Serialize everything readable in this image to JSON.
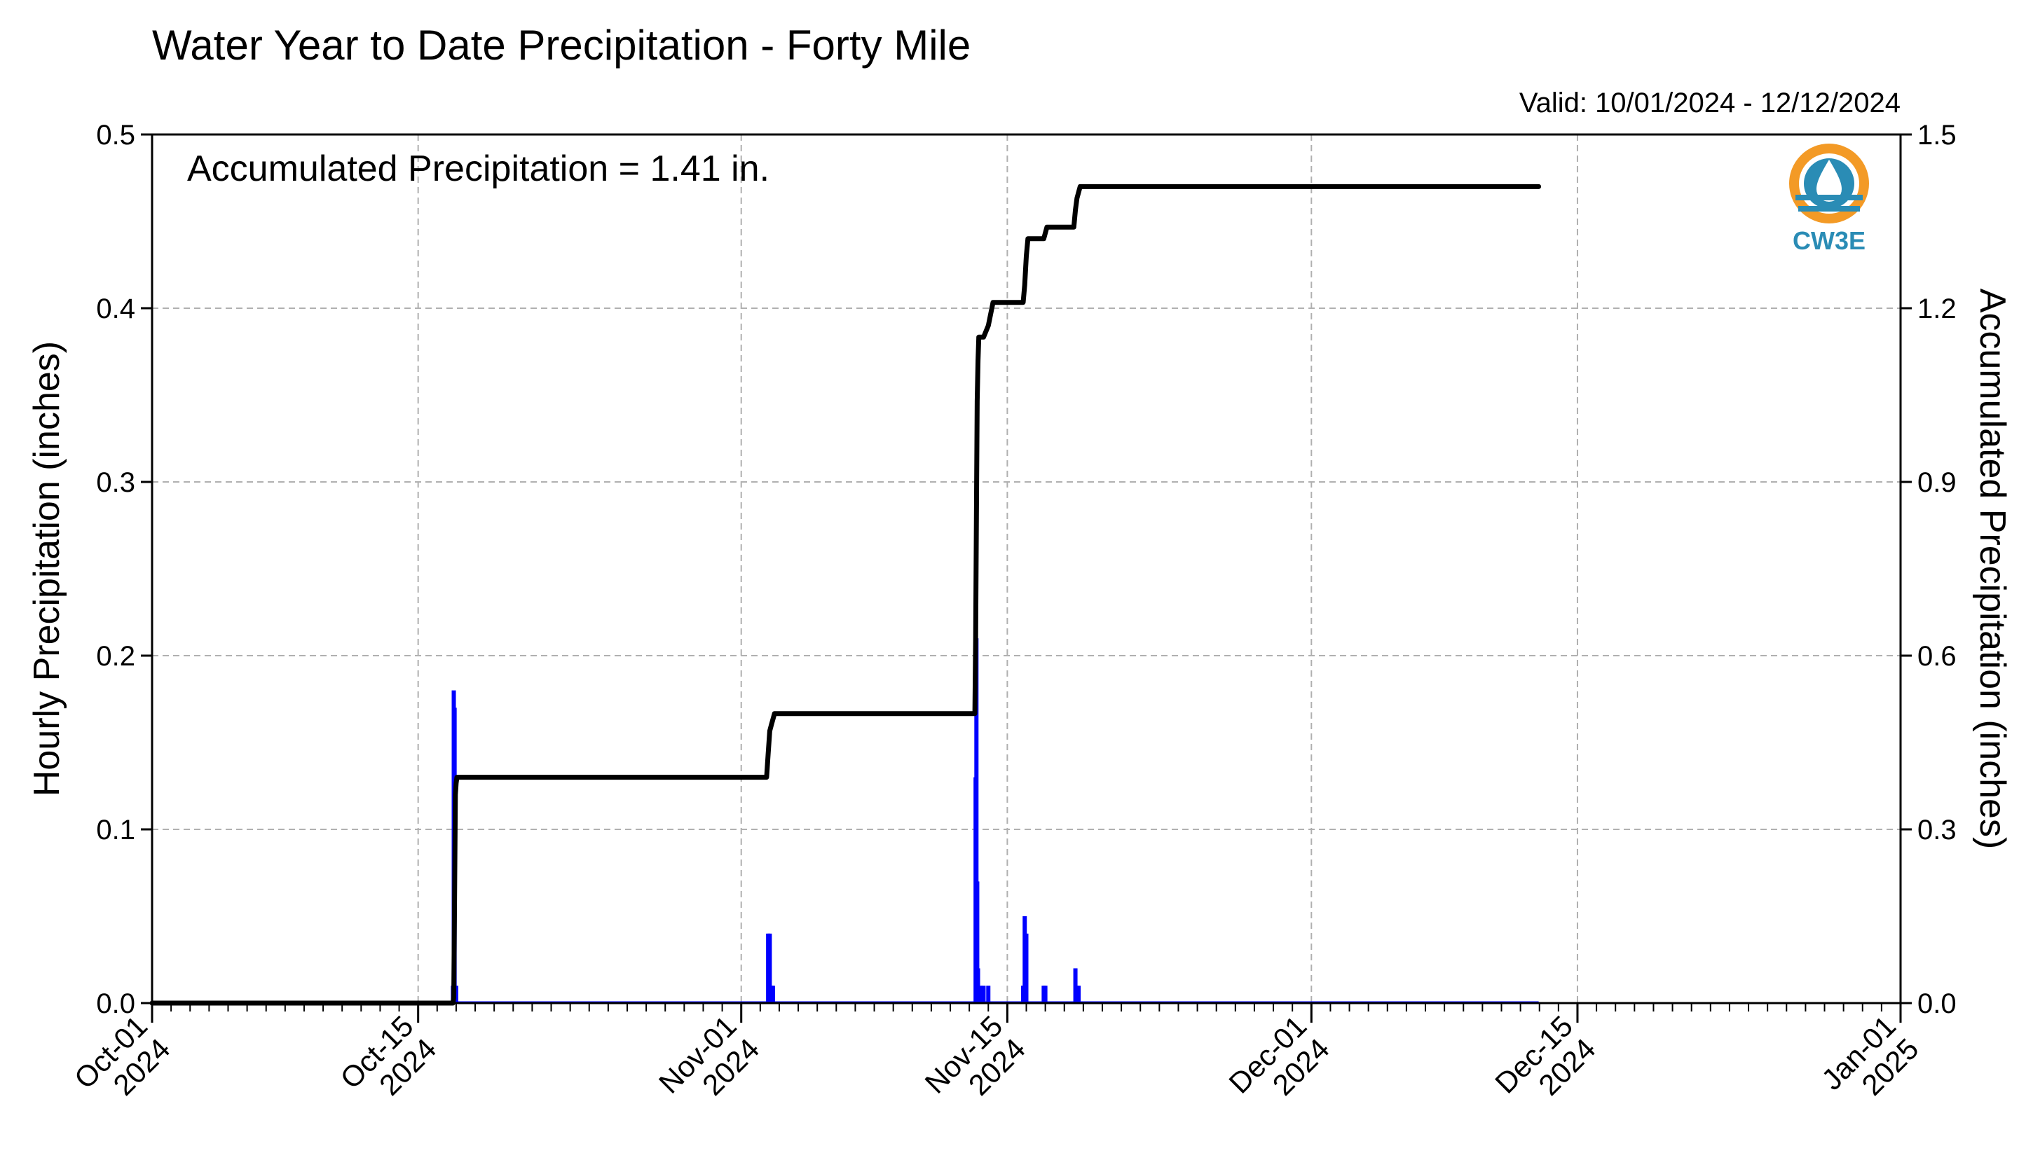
{
  "colors": {
    "hourly": "#0000ff",
    "accumulated": "#000000",
    "grid": "#b0b0b0",
    "logo_orange": "#f39a26",
    "logo_blue": "#2a8cb5"
  },
  "logo": {
    "text": "CW3E",
    "icon": "cw3e-water-drop-logo"
  },
  "chart_data": {
    "type": "bar",
    "title": "Water Year to Date Precipitation - Forty Mile",
    "valid_text": "Valid: 10/01/2024 - 12/12/2024",
    "annotation": "Accumulated Precipitation = 1.41 in.",
    "ylabel": "Hourly Precipitation (inches)",
    "y2label": "Accumulated Precipitation (inches)",
    "ylim": [
      0,
      0.5
    ],
    "y2lim": [
      0,
      1.5
    ],
    "y_ticks": [
      0.0,
      0.1,
      0.2,
      0.3,
      0.4,
      0.5
    ],
    "y_tick_labels": [
      "0.0",
      "0.1",
      "0.2",
      "0.3",
      "0.4",
      "0.5"
    ],
    "y2_ticks": [
      0.0,
      0.3,
      0.6,
      0.9,
      1.2,
      1.5
    ],
    "y2_tick_labels": [
      "0.0",
      "0.3",
      "0.6",
      "0.9",
      "1.2",
      "1.5"
    ],
    "xlim": [
      "2024-10-01",
      "2025-01-01"
    ],
    "x_ticks": [
      "2024-10-01",
      "2024-10-15",
      "2024-11-01",
      "2024-11-15",
      "2024-12-01",
      "2024-12-15",
      "2025-01-01"
    ],
    "x_tick_labels": [
      [
        "Oct-01",
        "2024"
      ],
      [
        "Oct-15",
        "2024"
      ],
      [
        "Nov-01",
        "2024"
      ],
      [
        "Nov-15",
        "2024"
      ],
      [
        "Dec-01",
        "2024"
      ],
      [
        "Dec-15",
        "2024"
      ],
      [
        "Jan-01",
        "2025"
      ]
    ],
    "grid": true,
    "series": [
      {
        "name": "Hourly Precipitation (inches)",
        "type": "bar",
        "points": [
          {
            "t": "2024-10-16 20:00",
            "v": 0.01
          },
          {
            "t": "2024-10-16 21:00",
            "v": 0.18
          },
          {
            "t": "2024-10-16 22:00",
            "v": 0.17
          },
          {
            "t": "2024-10-17 00:00",
            "v": 0.01
          },
          {
            "t": "2024-11-02 10:00",
            "v": 0.04
          },
          {
            "t": "2024-11-02 12:00",
            "v": 0.04
          },
          {
            "t": "2024-11-02 14:00",
            "v": 0.01
          },
          {
            "t": "2024-11-02 16:00",
            "v": 0.01
          },
          {
            "t": "2024-11-13 08:00",
            "v": 0.13
          },
          {
            "t": "2024-11-13 09:00",
            "v": 0.21
          },
          {
            "t": "2024-11-13 10:00",
            "v": 0.07
          },
          {
            "t": "2024-11-13 11:00",
            "v": 0.02
          },
          {
            "t": "2024-11-13 14:00",
            "v": 0.01
          },
          {
            "t": "2024-11-13 18:00",
            "v": 0.01
          },
          {
            "t": "2024-11-14 00:00",
            "v": 0.01
          },
          {
            "t": "2024-11-15 20:00",
            "v": 0.01
          },
          {
            "t": "2024-11-15 22:00",
            "v": 0.05
          },
          {
            "t": "2024-11-16 00:00",
            "v": 0.04
          },
          {
            "t": "2024-11-16 22:00",
            "v": 0.01
          },
          {
            "t": "2024-11-17 00:00",
            "v": 0.01
          },
          {
            "t": "2024-11-18 14:00",
            "v": 0.02
          },
          {
            "t": "2024-11-18 16:00",
            "v": 0.01
          },
          {
            "t": "2024-11-18 18:00",
            "v": 0.01
          }
        ]
      },
      {
        "name": "Accumulated Precipitation (inches)",
        "type": "line",
        "points": [
          {
            "t": "2024-10-01 00:00",
            "v": 0.0
          },
          {
            "t": "2024-10-16 20:00",
            "v": 0.0
          },
          {
            "t": "2024-10-16 21:00",
            "v": 0.01
          },
          {
            "t": "2024-10-16 22:00",
            "v": 0.19
          },
          {
            "t": "2024-10-16 23:00",
            "v": 0.36
          },
          {
            "t": "2024-10-17 00:00",
            "v": 0.38
          },
          {
            "t": "2024-10-17 01:00",
            "v": 0.39
          },
          {
            "t": "2024-11-02 08:00",
            "v": 0.39
          },
          {
            "t": "2024-11-02 10:00",
            "v": 0.43
          },
          {
            "t": "2024-11-02 12:00",
            "v": 0.47
          },
          {
            "t": "2024-11-02 14:00",
            "v": 0.48
          },
          {
            "t": "2024-11-02 18:00",
            "v": 0.5
          },
          {
            "t": "2024-11-13 07:00",
            "v": 0.5
          },
          {
            "t": "2024-11-13 08:00",
            "v": 0.63
          },
          {
            "t": "2024-11-13 09:00",
            "v": 0.84
          },
          {
            "t": "2024-11-13 10:00",
            "v": 1.04
          },
          {
            "t": "2024-11-13 11:00",
            "v": 1.11
          },
          {
            "t": "2024-11-13 12:00",
            "v": 1.15
          },
          {
            "t": "2024-11-13 18:00",
            "v": 1.15
          },
          {
            "t": "2024-11-14 00:00",
            "v": 1.17
          },
          {
            "t": "2024-11-14 06:00",
            "v": 1.21
          },
          {
            "t": "2024-11-15 20:00",
            "v": 1.21
          },
          {
            "t": "2024-11-15 22:00",
            "v": 1.24
          },
          {
            "t": "2024-11-16 00:00",
            "v": 1.29
          },
          {
            "t": "2024-11-16 02:00",
            "v": 1.32
          },
          {
            "t": "2024-11-16 22:00",
            "v": 1.32
          },
          {
            "t": "2024-11-17 02:00",
            "v": 1.34
          },
          {
            "t": "2024-11-18 12:00",
            "v": 1.34
          },
          {
            "t": "2024-11-18 14:00",
            "v": 1.37
          },
          {
            "t": "2024-11-18 16:00",
            "v": 1.39
          },
          {
            "t": "2024-11-18 20:00",
            "v": 1.41
          },
          {
            "t": "2024-12-12 23:00",
            "v": 1.41
          }
        ]
      }
    ]
  }
}
